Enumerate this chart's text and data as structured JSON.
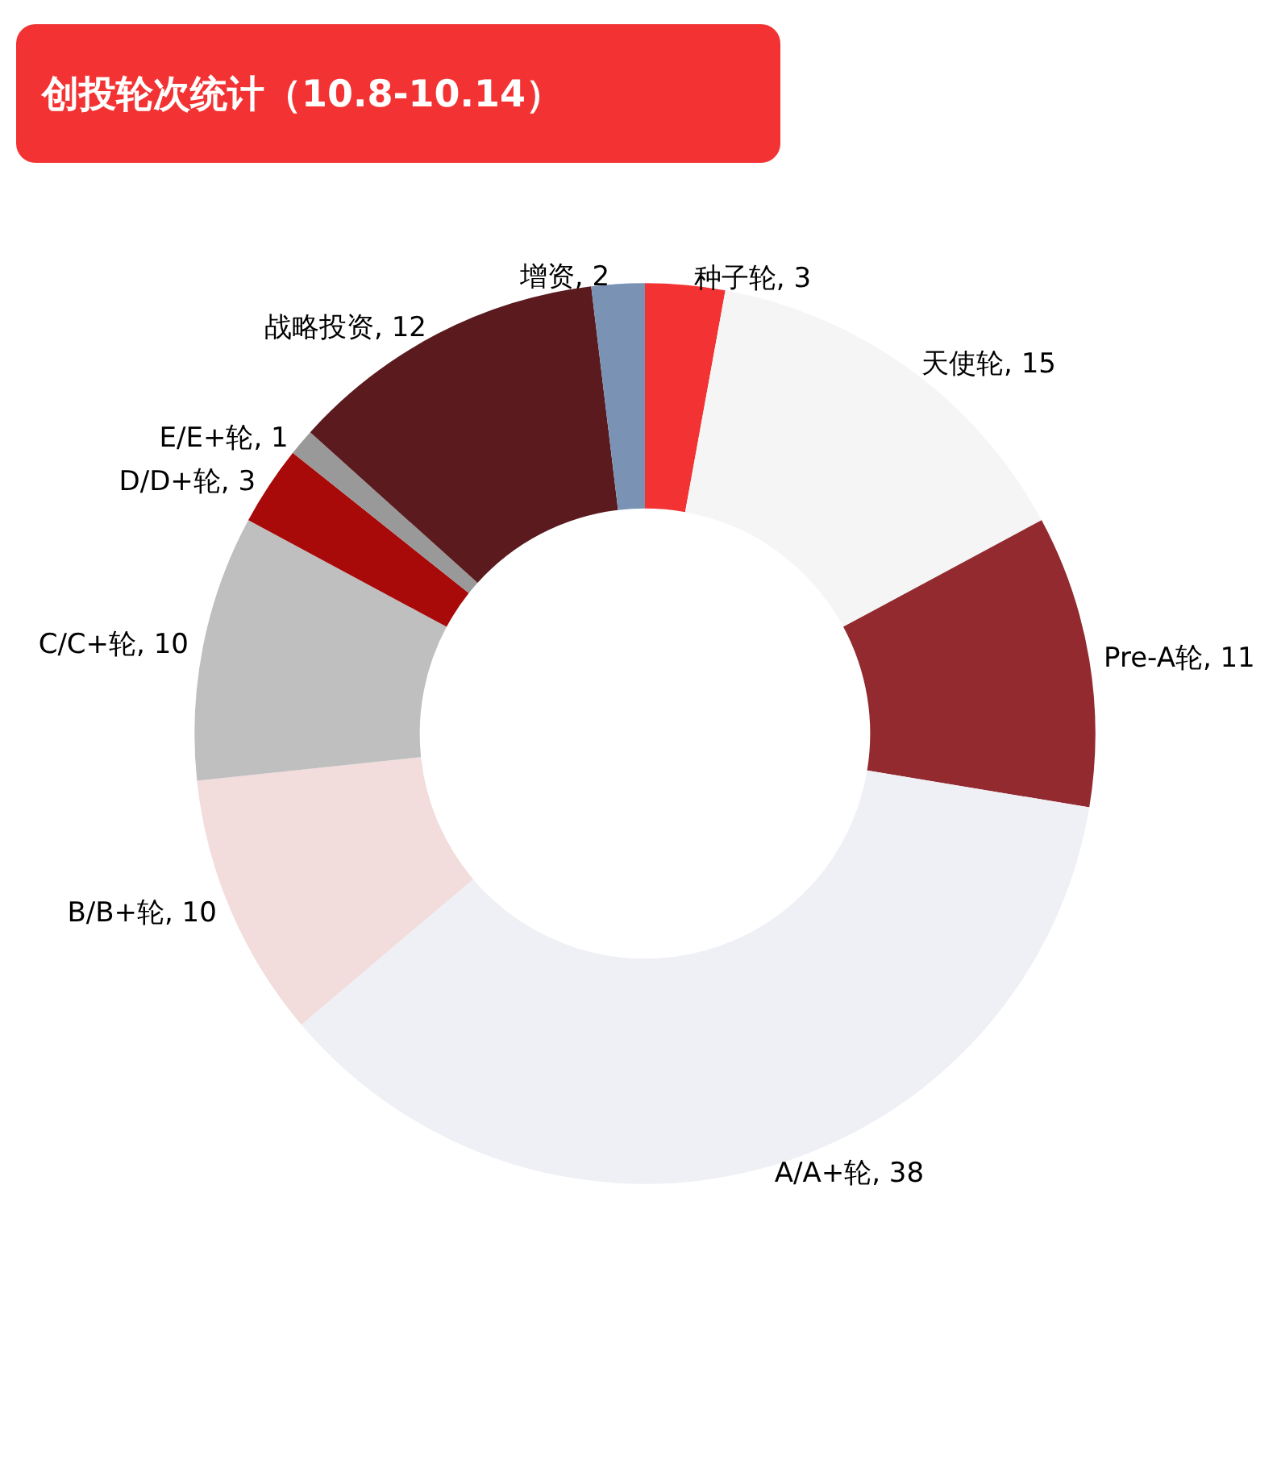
{
  "chart_data": {
    "type": "donut",
    "title": "创投轮次统计（10.8-10.14）",
    "categories": [
      "种子轮",
      "天使轮",
      "Pre-A轮",
      "A/A+轮",
      "B/B+轮",
      "C/C+轮",
      "D/D+轮",
      "E/E+轮",
      "战略投资",
      "增资"
    ],
    "values": [
      3,
      15,
      11,
      38,
      10,
      10,
      3,
      1,
      12,
      2
    ],
    "colors": [
      "#f33333",
      "#f5f5f5",
      "#922a2f",
      "#eef0f5",
      "#f2dcdc",
      "#bfbfbf",
      "#a80a0a",
      "#999999",
      "#5a1a1e",
      "#7a93b5"
    ],
    "value_labels": [
      ", 3",
      ", 15",
      ", 11",
      ", 38",
      ", 10",
      ", 10",
      ", 3",
      ", 1",
      ", 12",
      ", 2"
    ],
    "legend": false
  }
}
